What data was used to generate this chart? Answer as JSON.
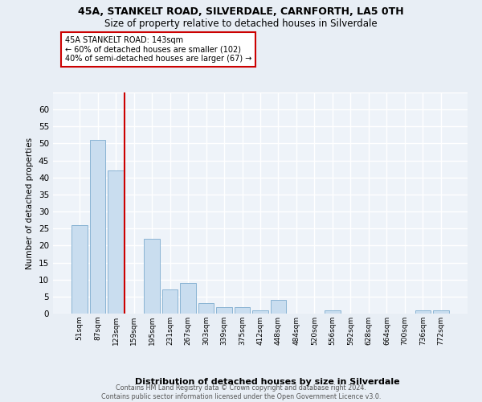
{
  "title": "45A, STANKELT ROAD, SILVERDALE, CARNFORTH, LA5 0TH",
  "subtitle": "Size of property relative to detached houses in Silverdale",
  "xlabel": "Distribution of detached houses by size in Silverdale",
  "ylabel": "Number of detached properties",
  "bins": [
    "51sqm",
    "87sqm",
    "123sqm",
    "159sqm",
    "195sqm",
    "231sqm",
    "267sqm",
    "303sqm",
    "339sqm",
    "375sqm",
    "412sqm",
    "448sqm",
    "484sqm",
    "520sqm",
    "556sqm",
    "592sqm",
    "628sqm",
    "664sqm",
    "700sqm",
    "736sqm",
    "772sqm"
  ],
  "values": [
    26,
    51,
    42,
    0,
    22,
    7,
    9,
    3,
    2,
    2,
    1,
    4,
    0,
    0,
    1,
    0,
    0,
    0,
    0,
    1,
    1
  ],
  "bar_color": "#c9ddef",
  "bar_edge_color": "#8ab4d4",
  "vline_x": 2.5,
  "vline_color": "#cc0000",
  "annotation_text": "45A STANKELT ROAD: 143sqm\n← 60% of detached houses are smaller (102)\n40% of semi-detached houses are larger (67) →",
  "annotation_box_color": "#ffffff",
  "annotation_box_edge": "#cc0000",
  "footer": "Contains HM Land Registry data © Crown copyright and database right 2024.\nContains public sector information licensed under the Open Government Licence v3.0.",
  "ylim": [
    0,
    65
  ],
  "bg_color": "#e8eef5",
  "plot_bg_color": "#eef3f9",
  "grid_color": "#ffffff",
  "title_fontsize": 9,
  "subtitle_fontsize": 8.5
}
